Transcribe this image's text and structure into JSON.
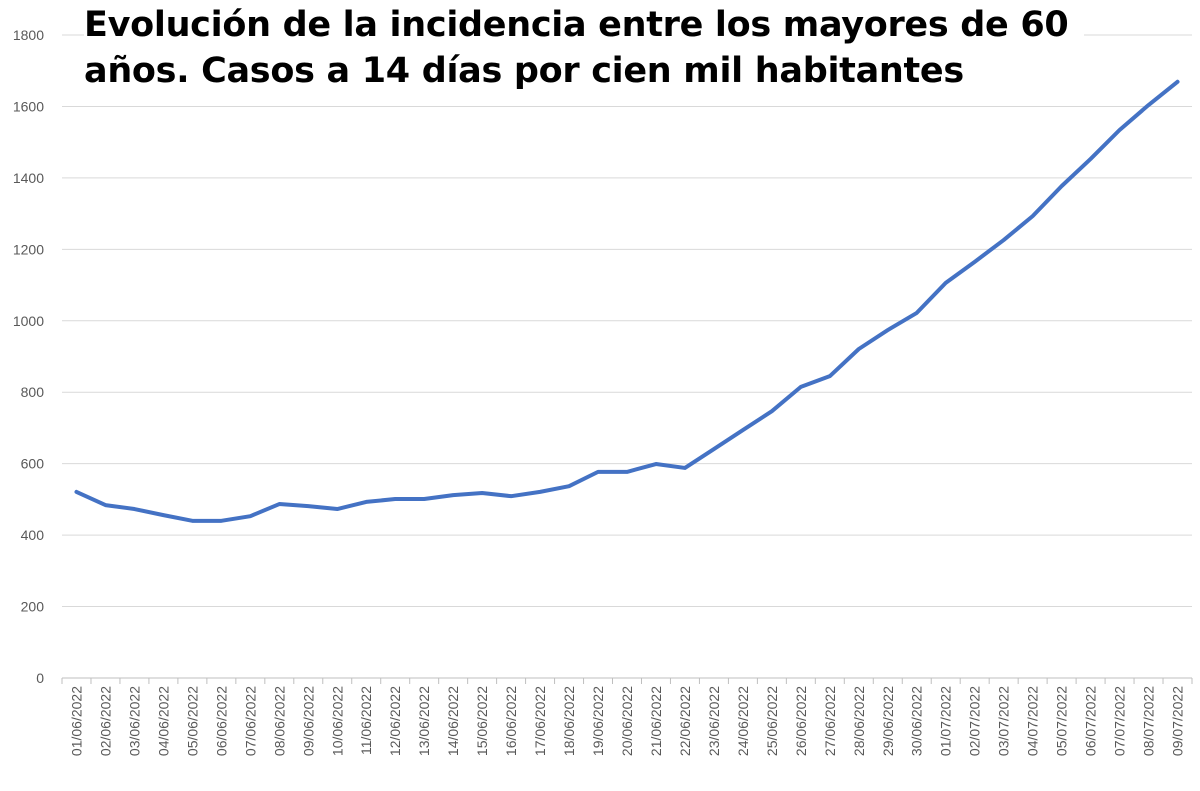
{
  "chart_data": {
    "type": "line",
    "title": "Evolución de la incidencia entre los mayores de 60 años. Casos a 14 días por cien mil habitantes",
    "xlabel": "",
    "ylabel": "",
    "ylim": [
      0,
      1800
    ],
    "yticks": [
      "0",
      "200",
      "400",
      "600",
      "800",
      "1000",
      "1200",
      "1400",
      "1600",
      "1800"
    ],
    "grid": true,
    "line_color": "#4472C4",
    "categories": [
      "01/06/2022",
      "02/06/2022",
      "03/06/2022",
      "04/06/2022",
      "05/06/2022",
      "06/06/2022",
      "07/06/2022",
      "08/06/2022",
      "09/06/2022",
      "10/06/2022",
      "11/06/2022",
      "12/06/2022",
      "13/06/2022",
      "14/06/2022",
      "15/06/2022",
      "16/06/2022",
      "17/06/2022",
      "18/06/2022",
      "19/06/2022",
      "20/06/2022",
      "21/06/2022",
      "22/06/2022",
      "23/06/2022",
      "24/06/2022",
      "25/06/2022",
      "26/06/2022",
      "27/06/2022",
      "28/06/2022",
      "29/06/2022",
      "30/06/2022",
      "01/07/2022",
      "02/07/2022",
      "03/07/2022",
      "04/07/2022",
      "05/07/2022",
      "06/07/2022",
      "07/07/2022",
      "08/07/2022",
      "09/07/2022"
    ],
    "values": [
      521,
      484,
      473,
      456,
      440,
      440,
      453,
      487,
      481,
      473,
      493,
      501,
      501,
      512,
      518,
      509,
      521,
      537,
      577,
      577,
      599,
      588,
      641,
      694,
      747,
      815,
      845,
      921,
      974,
      1022,
      1106,
      1165,
      1226,
      1293,
      1377,
      1453,
      1534,
      1604,
      1669
    ]
  }
}
